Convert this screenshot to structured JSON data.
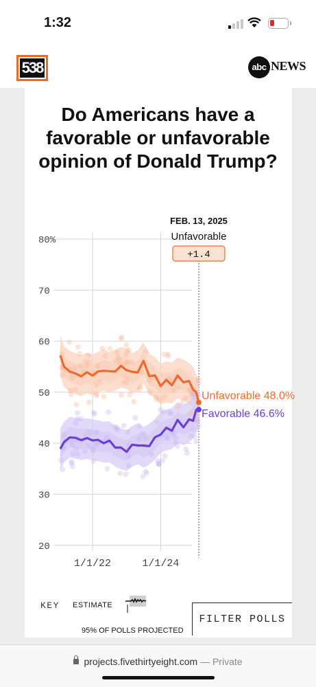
{
  "status_bar": {
    "time": "1:32"
  },
  "header": {
    "logo_text": "538",
    "partner_logo": "abc",
    "partner_name": "NEWS"
  },
  "chart_data": {
    "type": "line",
    "title": "Do Americans have a favorable or unfavorable opinion of Donald Trump?",
    "y_ticks": [
      "80%",
      "70",
      "60",
      "50",
      "40",
      "30",
      "20"
    ],
    "ylim": [
      20,
      80
    ],
    "x_ticks": [
      "1/1/22",
      "1/1/24"
    ],
    "x_range": [
      "2021-01-20",
      "2025-02-13"
    ],
    "grid": true,
    "annotation": {
      "date": "FEB. 13, 2025",
      "leader": "Unfavorable",
      "margin": "+1.4"
    },
    "series": [
      {
        "name": "Unfavorable",
        "color": "#ed6a2e",
        "end_label": "Unfavorable 48.0%",
        "x": [
          "2021-01-20",
          "2021-03-01",
          "2021-05-01",
          "2021-07-01",
          "2021-09-01",
          "2021-11-01",
          "2022-01-01",
          "2022-03-01",
          "2022-05-01",
          "2022-07-01",
          "2022-09-01",
          "2022-11-01",
          "2023-01-01",
          "2023-03-01",
          "2023-05-01",
          "2023-07-01",
          "2023-09-01",
          "2023-11-01",
          "2024-01-01",
          "2024-03-01",
          "2024-05-01",
          "2024-07-01",
          "2024-09-01",
          "2024-11-01",
          "2024-12-15",
          "2025-01-15",
          "2025-02-13"
        ],
        "values": [
          57.2,
          55.0,
          54.1,
          53.6,
          53.2,
          53.8,
          53.4,
          53.9,
          54.4,
          53.9,
          54.3,
          54.9,
          54.6,
          53.7,
          54.2,
          55.8,
          53.5,
          52.9,
          51.6,
          52.0,
          51.8,
          52.8,
          52.4,
          51.7,
          51.0,
          49.5,
          48.0
        ]
      },
      {
        "name": "Favorable",
        "color": "#6b3fd4",
        "end_label": "Favorable 46.6%",
        "x": [
          "2021-01-20",
          "2021-03-01",
          "2021-05-01",
          "2021-07-01",
          "2021-09-01",
          "2021-11-01",
          "2022-01-01",
          "2022-03-01",
          "2022-05-01",
          "2022-07-01",
          "2022-09-01",
          "2022-11-01",
          "2023-01-01",
          "2023-03-01",
          "2023-05-01",
          "2023-07-01",
          "2023-09-01",
          "2023-11-01",
          "2024-01-01",
          "2024-03-01",
          "2024-05-01",
          "2024-07-01",
          "2024-09-01",
          "2024-11-01",
          "2024-12-15",
          "2025-01-15",
          "2025-02-13"
        ],
        "values": [
          38.9,
          40.2,
          41.2,
          41.0,
          40.7,
          40.9,
          40.7,
          40.5,
          40.2,
          40.3,
          39.4,
          38.9,
          38.6,
          39.4,
          39.9,
          39.2,
          39.8,
          40.8,
          42.1,
          42.6,
          42.9,
          44.1,
          43.6,
          44.2,
          44.9,
          46.0,
          46.6
        ]
      }
    ]
  },
  "key": {
    "label": "KEY",
    "estimate_label": "ESTIMATE",
    "polls_label": "95% OF POLLS PROJECTED"
  },
  "filter_button": {
    "label": "FILTER POLLS"
  },
  "browser": {
    "url": "projects.fivethirtyeight.com",
    "mode": "— Private"
  }
}
